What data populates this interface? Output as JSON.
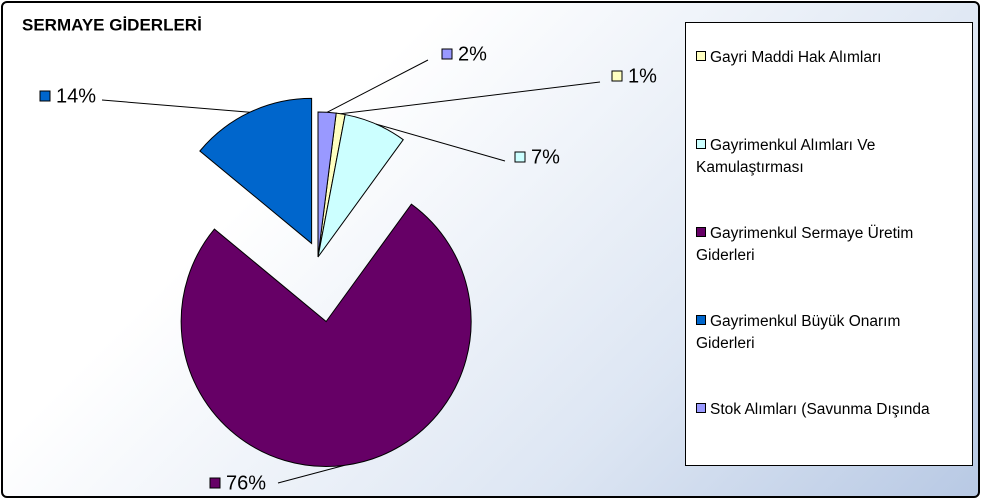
{
  "chart_data": {
    "type": "pie",
    "title": "SERMAYE GİDERLERİ",
    "categories": [
      "Gayri Maddi Hak Alımları",
      "Gayrimenkul Alımları Ve Kamulaştırması",
      "Gayrimenkul Sermaye Üretim Giderleri",
      "Gayrimenkul Büyük Onarım Giderleri",
      "Stok Alımları (Savunma Dışında"
    ],
    "values": [
      1,
      7,
      76,
      14,
      2
    ],
    "value_labels": [
      "1%",
      "7%",
      "76%",
      "14%",
      "2%"
    ],
    "colors": [
      "#ffffc0",
      "#ccffff",
      "#660066",
      "#0066cc",
      "#9999ff"
    ],
    "legend": "right"
  }
}
